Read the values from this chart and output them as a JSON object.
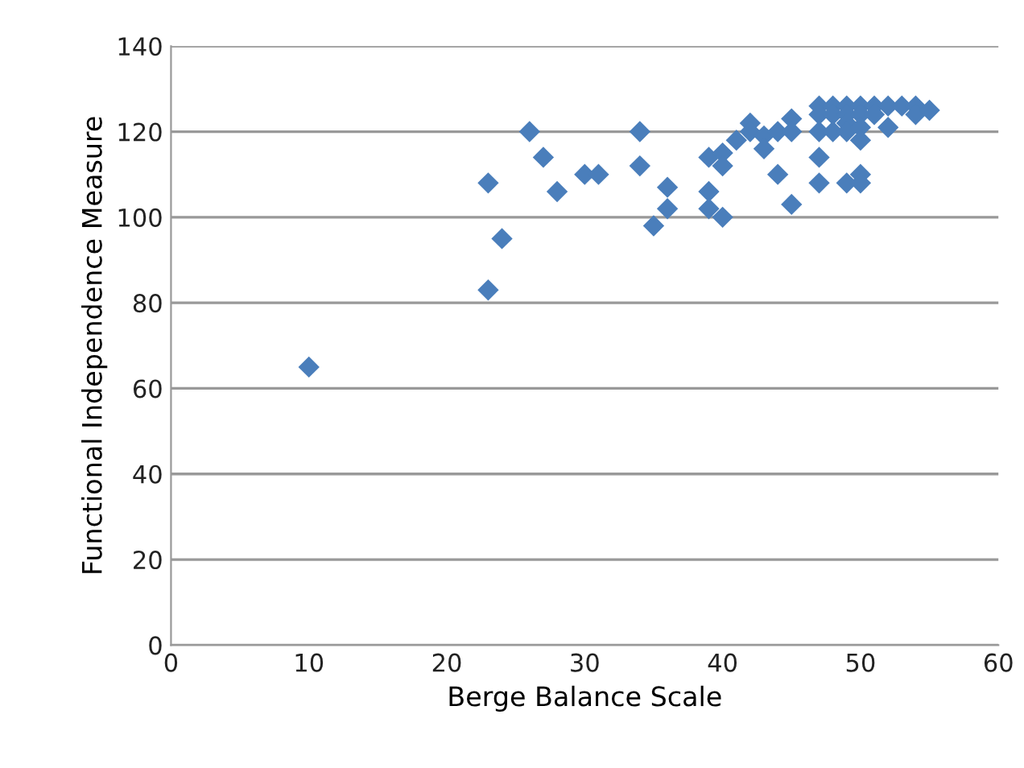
{
  "chart_data": {
    "type": "scatter",
    "xlabel": "Berge Balance Scale",
    "ylabel": "Functional Independence Measure",
    "x": [
      10,
      23,
      23,
      24,
      26,
      27,
      28,
      30,
      31,
      34,
      34,
      35,
      36,
      36,
      39,
      39,
      39,
      40,
      40,
      40,
      41,
      42,
      42,
      43,
      43,
      44,
      44,
      45,
      45,
      45,
      47,
      47,
      47,
      47,
      47,
      48,
      48,
      48,
      49,
      49,
      49,
      49,
      49,
      50,
      50,
      50,
      50,
      50,
      50,
      51,
      51,
      52,
      52,
      53,
      54,
      54,
      55
    ],
    "values": [
      65,
      108,
      83,
      95,
      120,
      114,
      106,
      110,
      110,
      120,
      112,
      98,
      107,
      102,
      114,
      106,
      102,
      115,
      112,
      100,
      118,
      122,
      120,
      119,
      116,
      120,
      110,
      123,
      120,
      103,
      126,
      124,
      120,
      114,
      108,
      126,
      124,
      120,
      126,
      124,
      122,
      120,
      108,
      126,
      124,
      121,
      118,
      110,
      108,
      126,
      124,
      126,
      121,
      126,
      126,
      124,
      125
    ],
    "color": "#4a7ebb",
    "marker": "diamond",
    "xlim": [
      0,
      60
    ],
    "xticks": [
      0,
      10,
      20,
      30,
      40,
      50,
      60
    ],
    "ylim": [
      0,
      140
    ],
    "yticks": [
      0,
      20,
      40,
      60,
      80,
      100,
      120,
      140
    ],
    "grid": "y",
    "legend": false
  }
}
